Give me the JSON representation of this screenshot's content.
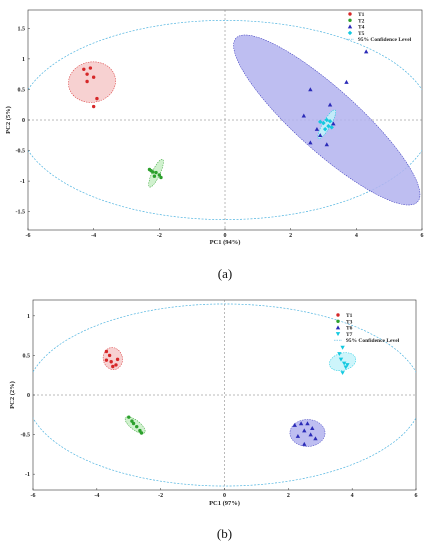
{
  "chart_data": [
    {
      "type": "scatter",
      "panel_label": "(a)",
      "xlabel": "PC1 (94%)",
      "ylabel": "PC2 (5%)",
      "xlim": [
        -6,
        6
      ],
      "ylim": [
        -1.8,
        1.8
      ],
      "xticks": [
        -6,
        -4,
        -2,
        0,
        2,
        4,
        6
      ],
      "yticks": [
        -1.5,
        -1,
        -0.5,
        0,
        0.5,
        1,
        1.5
      ],
      "ytick_labels": [
        "-1.5",
        "-1",
        "-0.5",
        "0",
        "0.5",
        "1",
        "1.5"
      ],
      "grid": false,
      "reference_lines": {
        "x": 0,
        "y": 0
      },
      "legend_placement": "top-right",
      "series": [
        {
          "name": "T1",
          "marker": "circle",
          "color": "#d62728",
          "fill": "#f6c9c9",
          "ellipse": {
            "cx": -4.05,
            "cy": 0.62,
            "rx": 0.72,
            "ry": 0.33,
            "angle": 10
          },
          "points": [
            [
              -4.3,
              0.83
            ],
            [
              -4.1,
              0.85
            ],
            [
              -4.0,
              0.7
            ],
            [
              -4.2,
              0.63
            ],
            [
              -3.9,
              0.35
            ],
            [
              -4.0,
              0.22
            ],
            [
              -4.2,
              0.75
            ]
          ]
        },
        {
          "name": "T2",
          "marker": "circle",
          "color": "#2ca02c",
          "fill": "#c8eec5",
          "ellipse": {
            "cx": -2.1,
            "cy": -0.87,
            "rx": 0.12,
            "ry": 0.25,
            "angle": -25
          },
          "points": [
            [
              -2.3,
              -0.81
            ],
            [
              -2.2,
              -0.85
            ],
            [
              -2.1,
              -0.86
            ],
            [
              -2.0,
              -0.9
            ],
            [
              -1.95,
              -0.94
            ],
            [
              -2.15,
              -0.92
            ],
            [
              -2.25,
              -0.83
            ]
          ]
        },
        {
          "name": "T4",
          "marker": "triangle",
          "color": "#2b2bb8",
          "fill": "#b3b3ef",
          "ellipse": {
            "cx": 3.1,
            "cy": 0.0,
            "rx": 0.95,
            "ry": 2.0,
            "angle": 48
          },
          "points": [
            [
              4.3,
              1.12
            ],
            [
              3.7,
              0.62
            ],
            [
              2.6,
              0.5
            ],
            [
              3.2,
              0.25
            ],
            [
              2.4,
              0.07
            ],
            [
              2.8,
              -0.15
            ],
            [
              3.3,
              -0.06
            ],
            [
              2.6,
              -0.37
            ],
            [
              3.1,
              -0.4
            ],
            [
              2.9,
              -0.25
            ]
          ]
        },
        {
          "name": "T5",
          "marker": "diamond",
          "color": "#14c9e0",
          "fill": "#c4f3fa",
          "ellipse": {
            "cx": 3.1,
            "cy": -0.07,
            "rx": 0.12,
            "ry": 0.27,
            "angle": -30
          },
          "points": [
            [
              2.9,
              -0.03
            ],
            [
              3.0,
              -0.05
            ],
            [
              3.1,
              0.0
            ],
            [
              3.15,
              -0.1
            ],
            [
              3.25,
              -0.12
            ],
            [
              3.05,
              -0.15
            ],
            [
              3.2,
              -0.02
            ]
          ]
        }
      ],
      "confidence_ellipse": {
        "name": "95% Confidence Level",
        "cx": 0,
        "cy": 0,
        "rx": 6.3,
        "ry": 1.63,
        "color": "#4fb4e0"
      }
    },
    {
      "type": "scatter",
      "panel_label": "(b)",
      "xlabel": "PC1 (97%)",
      "ylabel": "PC2 (2%)",
      "xlim": [
        -6,
        6
      ],
      "ylim": [
        -1.2,
        1.2
      ],
      "xticks": [
        -6,
        -4,
        -2,
        0,
        2,
        4,
        6
      ],
      "yticks": [
        -1,
        -0.5,
        0,
        0.5,
        1
      ],
      "ytick_labels": [
        "-1",
        "-0.5",
        "0",
        "0.5",
        "1"
      ],
      "grid": false,
      "reference_lines": {
        "x": 0,
        "y": 0
      },
      "legend_placement": "top-right",
      "series": [
        {
          "name": "T1",
          "marker": "circle",
          "color": "#d62728",
          "fill": "#f6c9c9",
          "ellipse": {
            "cx": -3.5,
            "cy": 0.46,
            "rx": 0.3,
            "ry": 0.14,
            "angle": 15
          },
          "points": [
            [
              -3.7,
              0.55
            ],
            [
              -3.6,
              0.5
            ],
            [
              -3.55,
              0.42
            ],
            [
              -3.4,
              0.38
            ],
            [
              -3.35,
              0.45
            ],
            [
              -3.5,
              0.36
            ],
            [
              -3.7,
              0.44
            ]
          ]
        },
        {
          "name": "T3",
          "marker": "circle",
          "color": "#2ca02c",
          "fill": "#c8eec5",
          "ellipse": {
            "cx": -2.8,
            "cy": -0.38,
            "rx": 0.38,
            "ry": 0.06,
            "angle": -38
          },
          "points": [
            [
              -3.0,
              -0.28
            ],
            [
              -2.9,
              -0.33
            ],
            [
              -2.85,
              -0.36
            ],
            [
              -2.75,
              -0.4
            ],
            [
              -2.65,
              -0.45
            ],
            [
              -2.6,
              -0.48
            ]
          ]
        },
        {
          "name": "T6",
          "marker": "triangle",
          "color": "#2b2bb8",
          "fill": "#b3b3ef",
          "ellipse": {
            "cx": 2.6,
            "cy": -0.48,
            "rx": 0.55,
            "ry": 0.17,
            "angle": 0
          },
          "points": [
            [
              2.2,
              -0.38
            ],
            [
              2.4,
              -0.36
            ],
            [
              2.6,
              -0.36
            ],
            [
              2.75,
              -0.42
            ],
            [
              2.5,
              -0.45
            ],
            [
              2.3,
              -0.52
            ],
            [
              2.7,
              -0.5
            ],
            [
              2.5,
              -0.62
            ],
            [
              2.85,
              -0.55
            ]
          ]
        },
        {
          "name": "T7",
          "marker": "down-triangle",
          "color": "#14c9e0",
          "fill": "#c4f3fa",
          "ellipse": {
            "cx": 3.7,
            "cy": 0.42,
            "rx": 0.27,
            "ry": 0.17,
            "angle": -75
          },
          "points": [
            [
              3.7,
              0.6
            ],
            [
              3.6,
              0.52
            ],
            [
              3.75,
              0.4
            ],
            [
              3.8,
              0.35
            ],
            [
              3.7,
              0.28
            ],
            [
              3.85,
              0.38
            ],
            [
              3.65,
              0.45
            ]
          ]
        }
      ],
      "confidence_ellipse": {
        "name": "95% Confidence Level",
        "cx": 0,
        "cy": 0,
        "rx": 6.2,
        "ry": 1.15,
        "color": "#4fb4e0"
      }
    }
  ]
}
